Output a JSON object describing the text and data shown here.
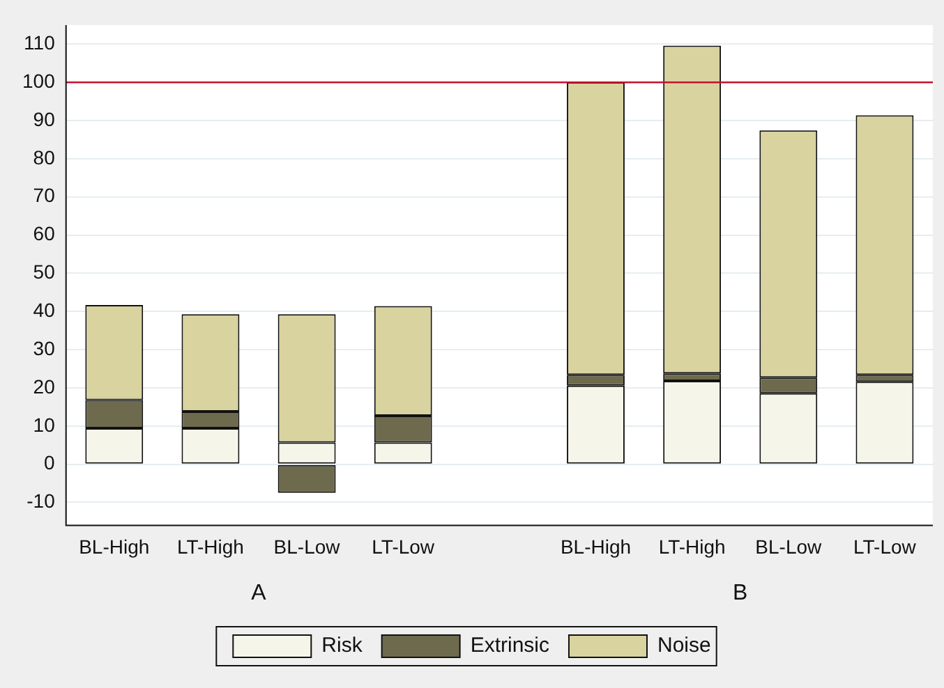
{
  "chart_data": {
    "type": "bar",
    "stacked": true,
    "categories": [
      "BL-High",
      "LT-High",
      "BL-Low",
      "LT-Low",
      null,
      "BL-High",
      "LT-High",
      "BL-Low",
      "LT-Low"
    ],
    "series": [
      {
        "name": "Risk",
        "color": "#f5f5ea",
        "values": [
          9.4,
          9.4,
          5.7,
          5.7,
          null,
          20.6,
          21.8,
          18.6,
          21.6
        ]
      },
      {
        "name": "Extrinsic",
        "color": "#6e6a4e",
        "values": [
          7.4,
          4.4,
          -7.5,
          7.0,
          null,
          2.8,
          2.0,
          4.1,
          1.8
        ]
      },
      {
        "name": "Noise",
        "color": "#d8d39f",
        "values": [
          24.9,
          25.5,
          33.6,
          28.7,
          null,
          76.6,
          85.8,
          64.7,
          68.0
        ]
      }
    ],
    "ylim": [
      -16,
      115
    ],
    "yticks": [
      -10,
      0,
      10,
      20,
      30,
      40,
      50,
      60,
      70,
      80,
      90,
      100,
      110
    ],
    "grid": "y",
    "legend": "bottom",
    "ref_lines": [
      {
        "axis": "y",
        "value": 100,
        "color": "#c8102e"
      }
    ],
    "annotations": [
      "A",
      "B"
    ]
  }
}
